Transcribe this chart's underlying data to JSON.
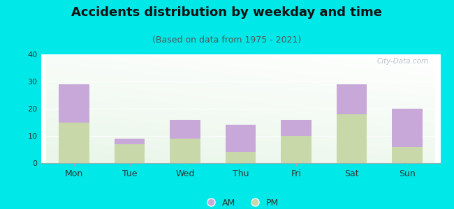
{
  "title": "Accidents distribution by weekday and time",
  "subtitle": "(Based on data from 1975 - 2021)",
  "categories": [
    "Mon",
    "Tue",
    "Wed",
    "Thu",
    "Fri",
    "Sat",
    "Sun"
  ],
  "pm_values": [
    15,
    7,
    9,
    4,
    10,
    18,
    6
  ],
  "am_values": [
    14,
    2,
    7,
    10,
    6,
    11,
    14
  ],
  "am_color": "#c8a8d8",
  "pm_color": "#c8d8a8",
  "ylim": [
    0,
    40
  ],
  "yticks": [
    0,
    10,
    20,
    30,
    40
  ],
  "background_color": "#00e8e8",
  "title_fontsize": 13,
  "subtitle_fontsize": 9,
  "watermark_text": "City-Data.com",
  "title_color": "#111111",
  "subtitle_color": "#555555",
  "tick_label_color": "#333333"
}
